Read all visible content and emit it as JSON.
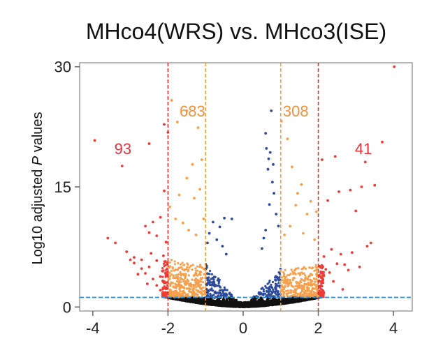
{
  "chart_data": {
    "type": "scatter",
    "title": "MHco4(WRS) vs. MHco3(ISE)",
    "ylabel_prefix": "Log10 adjusted ",
    "ylabel_italic": "P",
    "ylabel_suffix": " values",
    "xlabel": "",
    "xlim": [
      -4.35,
      4.5
    ],
    "ylim": [
      -0.5,
      30.5
    ],
    "x_ticks": [
      -4,
      -2,
      0,
      2,
      4
    ],
    "x_tick_labels": [
      "-4",
      "-2",
      "0",
      "2",
      "4"
    ],
    "y_ticks": [
      0,
      15,
      30
    ],
    "y_tick_labels": [
      "0",
      "15",
      "30"
    ],
    "grid": false,
    "thresholds": {
      "fold_change_outer": [
        -2,
        2
      ],
      "fold_change_inner": [
        -1,
        1
      ],
      "significance_y": 1.2
    },
    "annotations": [
      {
        "text": "93",
        "x": -3.2,
        "y": 19.1,
        "color": "#e8323c"
      },
      {
        "text": "683",
        "x": -1.35,
        "y": 23.8,
        "color": "#f3913a"
      },
      {
        "text": "308",
        "x": 1.4,
        "y": 23.8,
        "color": "#f3913a"
      },
      {
        "text": "41",
        "x": 3.2,
        "y": 19.1,
        "color": "#e8323c"
      }
    ],
    "series": [
      {
        "color": "#ef3b36",
        "values": [
          [
            -3.95,
            20.8
          ],
          [
            -3.22,
            17.6
          ],
          [
            -2.1,
            22.8
          ],
          [
            -2.5,
            20.4
          ],
          [
            -2.0,
            21.8
          ],
          [
            -3.6,
            8.6
          ],
          [
            -3.4,
            8.0
          ],
          [
            -3.1,
            6.9
          ],
          [
            -2.9,
            5.5
          ],
          [
            -2.7,
            4.8
          ],
          [
            -2.5,
            5.0
          ],
          [
            -2.3,
            5.8
          ],
          [
            -2.15,
            4.5
          ],
          [
            -2.2,
            3.8
          ],
          [
            -2.4,
            3.5
          ],
          [
            -2.6,
            4.2
          ],
          [
            -2.8,
            4.1
          ],
          [
            -3.0,
            5.9
          ],
          [
            -2.05,
            2.4
          ],
          [
            -2.1,
            3.0
          ],
          [
            -2.3,
            2.7
          ],
          [
            -2.2,
            11.2
          ],
          [
            -2.4,
            10.6
          ],
          [
            -2.6,
            10.1
          ],
          [
            -2.3,
            8.9
          ],
          [
            -2.5,
            9.3
          ],
          [
            -2.7,
            5.9
          ],
          [
            -2.45,
            6.7
          ],
          [
            -2.1,
            14.5
          ],
          [
            -2.05,
            8.1
          ],
          [
            -2.9,
            6.2
          ],
          [
            -2.12,
            6.4
          ],
          [
            -2.2,
            2.1
          ],
          [
            -2.55,
            2.9
          ],
          [
            4.02,
            30.0
          ],
          [
            3.25,
            18.1
          ],
          [
            3.5,
            15.2
          ],
          [
            2.45,
            18.8
          ],
          [
            2.1,
            18.4
          ],
          [
            3.15,
            15.0
          ],
          [
            2.85,
            14.6
          ],
          [
            2.55,
            14.4
          ],
          [
            2.25,
            13.3
          ],
          [
            3.0,
            12.0
          ],
          [
            3.4,
            8.0
          ],
          [
            3.3,
            7.6
          ],
          [
            2.9,
            6.8
          ],
          [
            2.6,
            6.6
          ],
          [
            2.35,
            7.2
          ],
          [
            2.15,
            6.3
          ],
          [
            2.7,
            5.3
          ],
          [
            2.5,
            5.4
          ],
          [
            2.3,
            4.3
          ],
          [
            3.1,
            5.0
          ],
          [
            2.2,
            4.7
          ],
          [
            2.12,
            3.4
          ],
          [
            2.4,
            3.2
          ],
          [
            2.05,
            2.6
          ],
          [
            2.65,
            2.2
          ],
          [
            3.7,
            20.6
          ],
          [
            2.8,
            4.6
          ]
        ]
      },
      {
        "color": "#f6a04d",
        "values": [
          [
            -1.9,
            25.8
          ],
          [
            -1.75,
            23.1
          ],
          [
            -1.5,
            24.5
          ],
          [
            -1.2,
            22.4
          ],
          [
            -1.1,
            18.4
          ],
          [
            -1.5,
            16.1
          ],
          [
            -1.7,
            14.0
          ],
          [
            -1.3,
            13.6
          ],
          [
            -1.8,
            11.0
          ],
          [
            -1.6,
            10.5
          ],
          [
            -1.45,
            9.6
          ],
          [
            -1.25,
            9.0
          ],
          [
            -1.95,
            12.5
          ],
          [
            -1.05,
            11.0
          ],
          [
            -1.15,
            14.7
          ],
          [
            -1.35,
            17.8
          ],
          [
            1.02,
            23.2
          ],
          [
            1.18,
            21.0
          ],
          [
            1.3,
            17.5
          ],
          [
            1.55,
            15.3
          ],
          [
            1.8,
            13.2
          ],
          [
            1.4,
            12.7
          ],
          [
            1.7,
            11.6
          ],
          [
            1.95,
            11.9
          ],
          [
            1.25,
            10.1
          ],
          [
            1.6,
            9.2
          ],
          [
            1.1,
            9.0
          ],
          [
            1.9,
            8.4
          ],
          [
            1.45,
            14.2
          ]
        ]
      },
      {
        "color": "#2b4a9b",
        "values": [
          [
            0.75,
            24.5
          ],
          [
            0.6,
            21.7
          ],
          [
            0.62,
            19.8
          ],
          [
            0.68,
            18.5
          ],
          [
            0.72,
            19.3
          ],
          [
            0.66,
            17.2
          ],
          [
            0.78,
            15.6
          ],
          [
            0.82,
            14.2
          ],
          [
            0.7,
            12.8
          ],
          [
            0.88,
            11.6
          ],
          [
            0.94,
            10.1
          ],
          [
            0.6,
            9.6
          ],
          [
            0.55,
            8.6
          ],
          [
            0.8,
            17.8
          ],
          [
            0.5,
            7.3
          ],
          [
            -0.5,
            11.1
          ],
          [
            -0.3,
            11.0
          ],
          [
            -0.62,
            10.0
          ],
          [
            -0.8,
            10.6
          ],
          [
            -0.9,
            9.2
          ],
          [
            -0.7,
            8.4
          ],
          [
            -0.55,
            7.6
          ],
          [
            -0.45,
            6.6
          ],
          [
            -0.95,
            8.0
          ]
        ]
      },
      {
        "color": "#111111",
        "values": []
      }
    ]
  }
}
